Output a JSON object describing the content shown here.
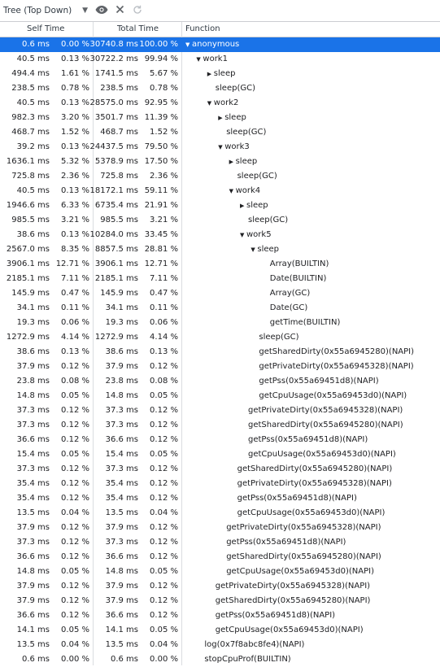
{
  "toolbar": {
    "view_mode": "Tree (Top Down)",
    "icons": [
      "eye-icon",
      "close-icon",
      "refresh-icon"
    ]
  },
  "columns": {
    "self_time": "Self Time",
    "total_time": "Total Time",
    "function": "Function"
  },
  "rows": [
    {
      "self_ms": "0.6 ms",
      "self_pct": "0.00 %",
      "total_ms": "30740.8 ms",
      "total_pct": "100.00 %",
      "depth": 0,
      "arrow": "down",
      "name": "anonymous",
      "selected": true
    },
    {
      "self_ms": "40.5 ms",
      "self_pct": "0.13 %",
      "total_ms": "30722.2 ms",
      "total_pct": "99.94 %",
      "depth": 1,
      "arrow": "down",
      "name": "work1"
    },
    {
      "self_ms": "494.4 ms",
      "self_pct": "1.61 %",
      "total_ms": "1741.5 ms",
      "total_pct": "5.67 %",
      "depth": 2,
      "arrow": "right",
      "name": "sleep"
    },
    {
      "self_ms": "238.5 ms",
      "self_pct": "0.78 %",
      "total_ms": "238.5 ms",
      "total_pct": "0.78 %",
      "depth": 2,
      "arrow": "",
      "name": "sleep(GC)"
    },
    {
      "self_ms": "40.5 ms",
      "self_pct": "0.13 %",
      "total_ms": "28575.0 ms",
      "total_pct": "92.95 %",
      "depth": 2,
      "arrow": "down",
      "name": "work2"
    },
    {
      "self_ms": "982.3 ms",
      "self_pct": "3.20 %",
      "total_ms": "3501.7 ms",
      "total_pct": "11.39 %",
      "depth": 3,
      "arrow": "right",
      "name": "sleep"
    },
    {
      "self_ms": "468.7 ms",
      "self_pct": "1.52 %",
      "total_ms": "468.7 ms",
      "total_pct": "1.52 %",
      "depth": 3,
      "arrow": "",
      "name": "sleep(GC)"
    },
    {
      "self_ms": "39.2 ms",
      "self_pct": "0.13 %",
      "total_ms": "24437.5 ms",
      "total_pct": "79.50 %",
      "depth": 3,
      "arrow": "down",
      "name": "work3"
    },
    {
      "self_ms": "1636.1 ms",
      "self_pct": "5.32 %",
      "total_ms": "5378.9 ms",
      "total_pct": "17.50 %",
      "depth": 4,
      "arrow": "right",
      "name": "sleep"
    },
    {
      "self_ms": "725.8 ms",
      "self_pct": "2.36 %",
      "total_ms": "725.8 ms",
      "total_pct": "2.36 %",
      "depth": 4,
      "arrow": "",
      "name": "sleep(GC)"
    },
    {
      "self_ms": "40.5 ms",
      "self_pct": "0.13 %",
      "total_ms": "18172.1 ms",
      "total_pct": "59.11 %",
      "depth": 4,
      "arrow": "down",
      "name": "work4"
    },
    {
      "self_ms": "1946.6 ms",
      "self_pct": "6.33 %",
      "total_ms": "6735.4 ms",
      "total_pct": "21.91 %",
      "depth": 5,
      "arrow": "right",
      "name": "sleep"
    },
    {
      "self_ms": "985.5 ms",
      "self_pct": "3.21 %",
      "total_ms": "985.5 ms",
      "total_pct": "3.21 %",
      "depth": 5,
      "arrow": "",
      "name": "sleep(GC)"
    },
    {
      "self_ms": "38.6 ms",
      "self_pct": "0.13 %",
      "total_ms": "10284.0 ms",
      "total_pct": "33.45 %",
      "depth": 5,
      "arrow": "down",
      "name": "work5"
    },
    {
      "self_ms": "2567.0 ms",
      "self_pct": "8.35 %",
      "total_ms": "8857.5 ms",
      "total_pct": "28.81 %",
      "depth": 6,
      "arrow": "down",
      "name": "sleep"
    },
    {
      "self_ms": "3906.1 ms",
      "self_pct": "12.71 %",
      "total_ms": "3906.1 ms",
      "total_pct": "12.71 %",
      "depth": 7,
      "arrow": "",
      "name": "Array(BUILTIN)"
    },
    {
      "self_ms": "2185.1 ms",
      "self_pct": "7.11 %",
      "total_ms": "2185.1 ms",
      "total_pct": "7.11 %",
      "depth": 7,
      "arrow": "",
      "name": "Date(BUILTIN)"
    },
    {
      "self_ms": "145.9 ms",
      "self_pct": "0.47 %",
      "total_ms": "145.9 ms",
      "total_pct": "0.47 %",
      "depth": 7,
      "arrow": "",
      "name": "Array(GC)"
    },
    {
      "self_ms": "34.1 ms",
      "self_pct": "0.11 %",
      "total_ms": "34.1 ms",
      "total_pct": "0.11 %",
      "depth": 7,
      "arrow": "",
      "name": "Date(GC)"
    },
    {
      "self_ms": "19.3 ms",
      "self_pct": "0.06 %",
      "total_ms": "19.3 ms",
      "total_pct": "0.06 %",
      "depth": 7,
      "arrow": "",
      "name": "getTime(BUILTIN)"
    },
    {
      "self_ms": "1272.9 ms",
      "self_pct": "4.14 %",
      "total_ms": "1272.9 ms",
      "total_pct": "4.14 %",
      "depth": 6,
      "arrow": "",
      "name": "sleep(GC)"
    },
    {
      "self_ms": "38.6 ms",
      "self_pct": "0.13 %",
      "total_ms": "38.6 ms",
      "total_pct": "0.13 %",
      "depth": 6,
      "arrow": "",
      "name": "getSharedDirty(0x55a6945280)(NAPI)"
    },
    {
      "self_ms": "37.9 ms",
      "self_pct": "0.12 %",
      "total_ms": "37.9 ms",
      "total_pct": "0.12 %",
      "depth": 6,
      "arrow": "",
      "name": "getPrivateDirty(0x55a6945328)(NAPI)"
    },
    {
      "self_ms": "23.8 ms",
      "self_pct": "0.08 %",
      "total_ms": "23.8 ms",
      "total_pct": "0.08 %",
      "depth": 6,
      "arrow": "",
      "name": "getPss(0x55a69451d8)(NAPI)"
    },
    {
      "self_ms": "14.8 ms",
      "self_pct": "0.05 %",
      "total_ms": "14.8 ms",
      "total_pct": "0.05 %",
      "depth": 6,
      "arrow": "",
      "name": "getCpuUsage(0x55a69453d0)(NAPI)"
    },
    {
      "self_ms": "37.3 ms",
      "self_pct": "0.12 %",
      "total_ms": "37.3 ms",
      "total_pct": "0.12 %",
      "depth": 5,
      "arrow": "",
      "name": "getPrivateDirty(0x55a6945328)(NAPI)"
    },
    {
      "self_ms": "37.3 ms",
      "self_pct": "0.12 %",
      "total_ms": "37.3 ms",
      "total_pct": "0.12 %",
      "depth": 5,
      "arrow": "",
      "name": "getSharedDirty(0x55a6945280)(NAPI)"
    },
    {
      "self_ms": "36.6 ms",
      "self_pct": "0.12 %",
      "total_ms": "36.6 ms",
      "total_pct": "0.12 %",
      "depth": 5,
      "arrow": "",
      "name": "getPss(0x55a69451d8)(NAPI)"
    },
    {
      "self_ms": "15.4 ms",
      "self_pct": "0.05 %",
      "total_ms": "15.4 ms",
      "total_pct": "0.05 %",
      "depth": 5,
      "arrow": "",
      "name": "getCpuUsage(0x55a69453d0)(NAPI)"
    },
    {
      "self_ms": "37.3 ms",
      "self_pct": "0.12 %",
      "total_ms": "37.3 ms",
      "total_pct": "0.12 %",
      "depth": 4,
      "arrow": "",
      "name": "getSharedDirty(0x55a6945280)(NAPI)"
    },
    {
      "self_ms": "35.4 ms",
      "self_pct": "0.12 %",
      "total_ms": "35.4 ms",
      "total_pct": "0.12 %",
      "depth": 4,
      "arrow": "",
      "name": "getPrivateDirty(0x55a6945328)(NAPI)"
    },
    {
      "self_ms": "35.4 ms",
      "self_pct": "0.12 %",
      "total_ms": "35.4 ms",
      "total_pct": "0.12 %",
      "depth": 4,
      "arrow": "",
      "name": "getPss(0x55a69451d8)(NAPI)"
    },
    {
      "self_ms": "13.5 ms",
      "self_pct": "0.04 %",
      "total_ms": "13.5 ms",
      "total_pct": "0.04 %",
      "depth": 4,
      "arrow": "",
      "name": "getCpuUsage(0x55a69453d0)(NAPI)"
    },
    {
      "self_ms": "37.9 ms",
      "self_pct": "0.12 %",
      "total_ms": "37.9 ms",
      "total_pct": "0.12 %",
      "depth": 3,
      "arrow": "",
      "name": "getPrivateDirty(0x55a6945328)(NAPI)"
    },
    {
      "self_ms": "37.3 ms",
      "self_pct": "0.12 %",
      "total_ms": "37.3 ms",
      "total_pct": "0.12 %",
      "depth": 3,
      "arrow": "",
      "name": "getPss(0x55a69451d8)(NAPI)"
    },
    {
      "self_ms": "36.6 ms",
      "self_pct": "0.12 %",
      "total_ms": "36.6 ms",
      "total_pct": "0.12 %",
      "depth": 3,
      "arrow": "",
      "name": "getSharedDirty(0x55a6945280)(NAPI)"
    },
    {
      "self_ms": "14.8 ms",
      "self_pct": "0.05 %",
      "total_ms": "14.8 ms",
      "total_pct": "0.05 %",
      "depth": 3,
      "arrow": "",
      "name": "getCpuUsage(0x55a69453d0)(NAPI)"
    },
    {
      "self_ms": "37.9 ms",
      "self_pct": "0.12 %",
      "total_ms": "37.9 ms",
      "total_pct": "0.12 %",
      "depth": 2,
      "arrow": "",
      "name": "getPrivateDirty(0x55a6945328)(NAPI)"
    },
    {
      "self_ms": "37.9 ms",
      "self_pct": "0.12 %",
      "total_ms": "37.9 ms",
      "total_pct": "0.12 %",
      "depth": 2,
      "arrow": "",
      "name": "getSharedDirty(0x55a6945280)(NAPI)"
    },
    {
      "self_ms": "36.6 ms",
      "self_pct": "0.12 %",
      "total_ms": "36.6 ms",
      "total_pct": "0.12 %",
      "depth": 2,
      "arrow": "",
      "name": "getPss(0x55a69451d8)(NAPI)"
    },
    {
      "self_ms": "14.1 ms",
      "self_pct": "0.05 %",
      "total_ms": "14.1 ms",
      "total_pct": "0.05 %",
      "depth": 2,
      "arrow": "",
      "name": "getCpuUsage(0x55a69453d0)(NAPI)"
    },
    {
      "self_ms": "13.5 ms",
      "self_pct": "0.04 %",
      "total_ms": "13.5 ms",
      "total_pct": "0.04 %",
      "depth": 1,
      "arrow": "",
      "name": "log(0x7f8abc8fe4)(NAPI)"
    },
    {
      "self_ms": "0.6 ms",
      "self_pct": "0.00 %",
      "total_ms": "0.6 ms",
      "total_pct": "0.00 %",
      "depth": 1,
      "arrow": "",
      "name": "stopCpuProf(BUILTIN)"
    }
  ],
  "colors": {
    "selected_bg": "#1a73e8",
    "border": "#cbcdd1"
  }
}
